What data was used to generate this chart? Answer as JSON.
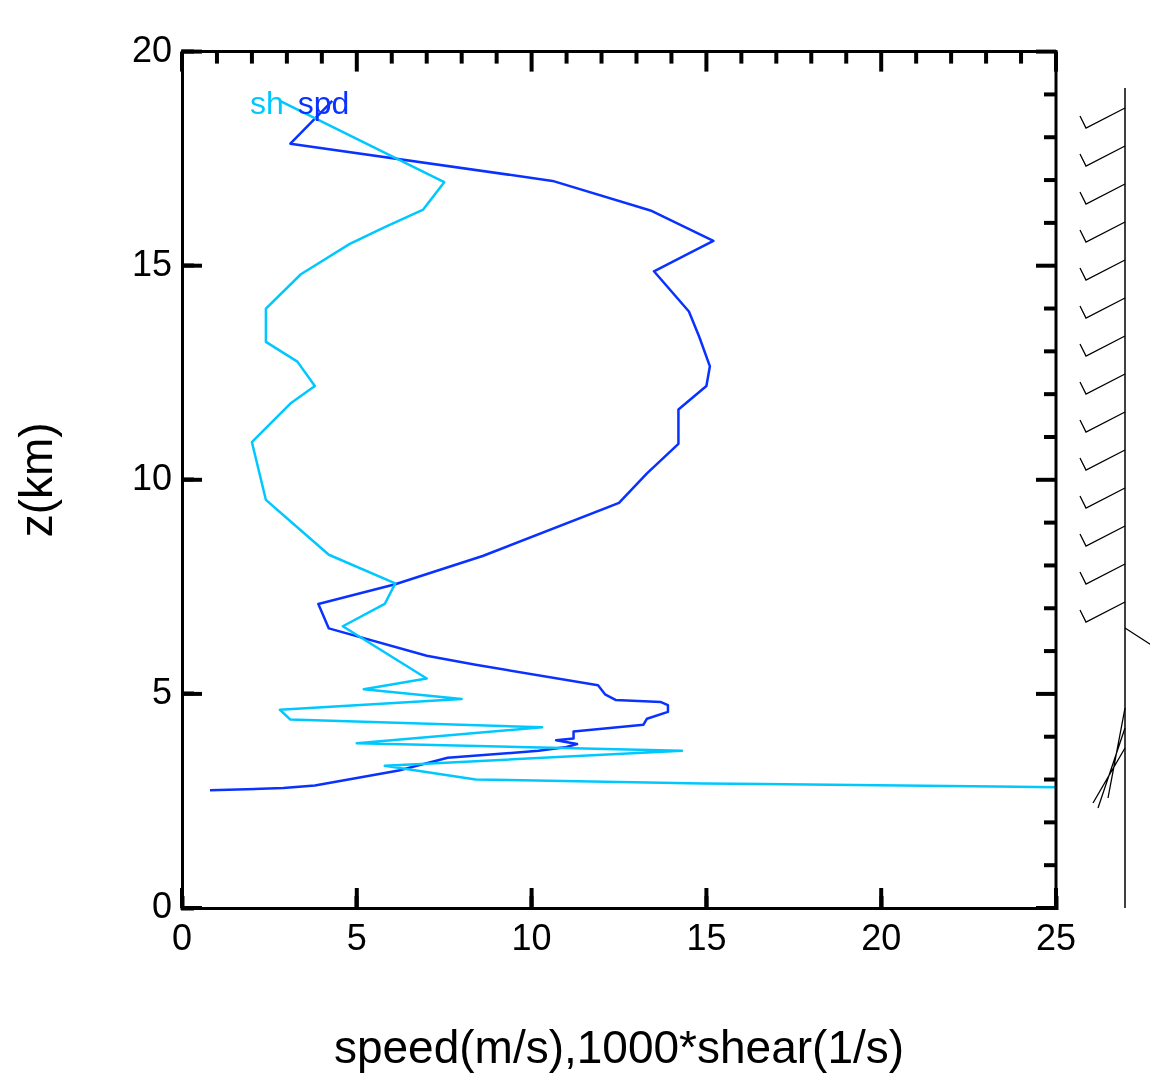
{
  "chart_data": {
    "type": "line",
    "xlabel": "speed(m/s),1000*shear(1/s)",
    "ylabel": "z(km)",
    "xlim": [
      0,
      25
    ],
    "ylim": [
      0,
      20
    ],
    "xticks": [
      0,
      {
        "value": 1,
        "label": null
      },
      {
        "value": 2,
        "label": null
      },
      {
        "value": 3,
        "label": null
      },
      {
        "value": 4,
        "label": null
      },
      5,
      {
        "value": 6,
        "label": null
      },
      {
        "value": 7,
        "label": null
      },
      {
        "value": 8,
        "label": null
      },
      {
        "value": 9,
        "label": null
      },
      10,
      {
        "value": 11,
        "label": null
      },
      {
        "value": 12,
        "label": null
      },
      {
        "value": 13,
        "label": null
      },
      {
        "value": 14,
        "label": null
      },
      15,
      {
        "value": 16,
        "label": null
      },
      {
        "value": 17,
        "label": null
      },
      {
        "value": 18,
        "label": null
      },
      {
        "value": 19,
        "label": null
      },
      20,
      {
        "value": 21,
        "label": null
      },
      {
        "value": 22,
        "label": null
      },
      {
        "value": 23,
        "label": null
      },
      {
        "value": 24,
        "label": null
      },
      25
    ],
    "yticks": [
      0,
      {
        "value": 1,
        "label": null
      },
      {
        "value": 2,
        "label": null
      },
      {
        "value": 3,
        "label": null
      },
      {
        "value": 4,
        "label": null
      },
      5,
      {
        "value": 6,
        "label": null
      },
      {
        "value": 7,
        "label": null
      },
      {
        "value": 8,
        "label": null
      },
      {
        "value": 9,
        "label": null
      },
      10,
      {
        "value": 11,
        "label": null
      },
      {
        "value": 12,
        "label": null
      },
      {
        "value": 13,
        "label": null
      },
      {
        "value": 14,
        "label": null
      },
      15,
      {
        "value": 16,
        "label": null
      },
      {
        "value": 17,
        "label": null
      },
      {
        "value": 18,
        "label": null
      },
      {
        "value": 19,
        "label": null
      },
      20
    ],
    "grid": false,
    "legend": "top left",
    "marker": "none",
    "line_style": "solid",
    "series": [
      {
        "name": "sh",
        "color": "#00c8ff",
        "x": [
          25,
          14.9,
          8.4,
          5.8,
          14.3,
          5.0,
          10.3,
          3.1,
          2.8,
          8.0,
          5.2,
          7.0,
          4.6,
          5.8,
          6.1,
          4.2,
          2.4,
          2.0,
          3.1,
          3.8,
          3.3,
          2.4,
          2.4,
          3.4,
          4.8,
          5.8,
          6.9,
          7.5,
          2.8
        ],
        "values": [
          2.82,
          2.91,
          3.0,
          3.32,
          3.67,
          3.85,
          4.22,
          4.4,
          4.63,
          4.88,
          5.11,
          5.36,
          6.58,
          7.1,
          7.58,
          8.25,
          9.53,
          10.88,
          11.78,
          12.19,
          12.76,
          13.22,
          14.0,
          14.8,
          15.51,
          15.9,
          16.31,
          16.95,
          18.85
        ]
      },
      {
        "name": "spd",
        "color": "#0a32ff",
        "x": [
          0.8,
          2.9,
          3.8,
          6.2,
          7.6,
          10.2,
          11.0,
          11.3,
          10.7,
          11.2,
          11.2,
          13.2,
          13.3,
          13.9,
          13.9,
          13.7,
          12.4,
          12.1,
          11.9,
          8.4,
          7.0,
          4.2,
          3.9,
          6.1,
          8.6,
          12.5,
          13.3,
          14.2,
          14.2,
          15.0,
          15.1,
          14.8,
          14.5,
          13.5,
          15.2,
          13.4,
          10.6,
          3.1,
          4.3
        ],
        "values": [
          2.75,
          2.8,
          2.86,
          3.21,
          3.51,
          3.67,
          3.76,
          3.83,
          3.92,
          3.96,
          4.12,
          4.28,
          4.42,
          4.58,
          4.74,
          4.81,
          4.86,
          4.99,
          5.2,
          5.68,
          5.89,
          6.53,
          7.1,
          7.56,
          8.22,
          9.46,
          10.15,
          10.84,
          11.64,
          12.19,
          12.65,
          13.33,
          13.93,
          14.87,
          15.58,
          16.29,
          16.98,
          17.85,
          18.85
        ]
      }
    ]
  }
}
